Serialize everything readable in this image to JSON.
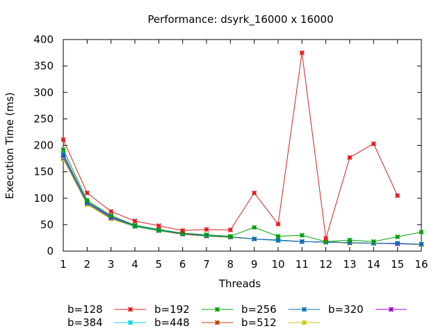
{
  "chart_data": {
    "type": "line",
    "title": "Performance: dsyrk_16000 x 16000",
    "xlabel": "Threads",
    "ylabel": "Execution Time (ms)",
    "xlim": [
      1,
      16
    ],
    "ylim": [
      0,
      400
    ],
    "x": [
      1,
      2,
      3,
      4,
      5,
      6,
      7,
      8,
      9,
      10,
      11,
      12,
      13,
      14,
      15,
      16
    ],
    "xticks": [
      1,
      2,
      3,
      4,
      5,
      6,
      7,
      8,
      9,
      10,
      11,
      12,
      13,
      14,
      15,
      16
    ],
    "yticks": [
      0,
      50,
      100,
      150,
      200,
      250,
      300,
      350,
      400
    ],
    "grid": false,
    "legend_position": "bottom",
    "series": [
      {
        "name": "b=128",
        "color": "#e41a1c",
        "values": [
          211,
          110,
          75,
          57,
          48,
          39,
          41,
          40,
          110,
          51,
          375,
          24,
          177,
          203,
          105,
          null
        ]
      },
      {
        "name": "b=192",
        "color": "#00a000",
        "values": [
          192,
          96,
          67,
          49,
          41,
          34,
          31,
          28,
          45,
          28,
          30,
          18,
          21,
          18,
          27,
          36
        ]
      },
      {
        "name": "b=256",
        "color": "#0072b2",
        "values": [
          184,
          93,
          66,
          48,
          40,
          33,
          29,
          27,
          23,
          21,
          18,
          17,
          16,
          15,
          15,
          13
        ]
      },
      {
        "name": "b=320",
        "color": "#a000d0",
        "values": [
          181,
          92,
          64,
          48,
          40,
          33,
          29,
          27,
          23,
          21,
          18,
          17,
          16,
          15,
          14,
          13
        ]
      },
      {
        "name": "b=384",
        "color": "#00d6e0",
        "values": [
          178,
          91,
          63,
          47,
          39,
          33,
          29,
          27,
          23,
          20,
          18,
          17,
          16,
          15,
          14,
          13
        ]
      },
      {
        "name": "b=448",
        "color": "#c04000",
        "values": [
          176,
          90,
          62,
          47,
          39,
          32,
          29,
          27,
          23,
          20,
          18,
          17,
          16,
          15,
          14,
          13
        ]
      },
      {
        "name": "b=512",
        "color": "#c8c800",
        "values": [
          174,
          88,
          61,
          46,
          38,
          32,
          28,
          26,
          23,
          20,
          18,
          17,
          15,
          15,
          14,
          12
        ]
      }
    ]
  }
}
